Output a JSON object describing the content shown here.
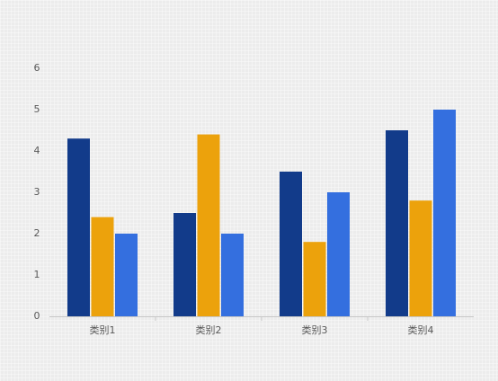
{
  "chart_data": {
    "type": "bar",
    "categories": [
      "类别1",
      "类别2",
      "类别3",
      "类别4"
    ],
    "series": [
      {
        "color": "#123b8a",
        "values": [
          4.3,
          2.5,
          3.5,
          4.5
        ]
      },
      {
        "color": "#eca20c",
        "values": [
          2.4,
          4.4,
          1.8,
          2.8
        ]
      },
      {
        "color": "#346fdf",
        "values": [
          2,
          2,
          3,
          5
        ]
      }
    ],
    "ylim": [
      0,
      6
    ],
    "yticks": [
      0,
      1,
      2,
      3,
      4,
      5,
      6
    ],
    "grid": false
  }
}
